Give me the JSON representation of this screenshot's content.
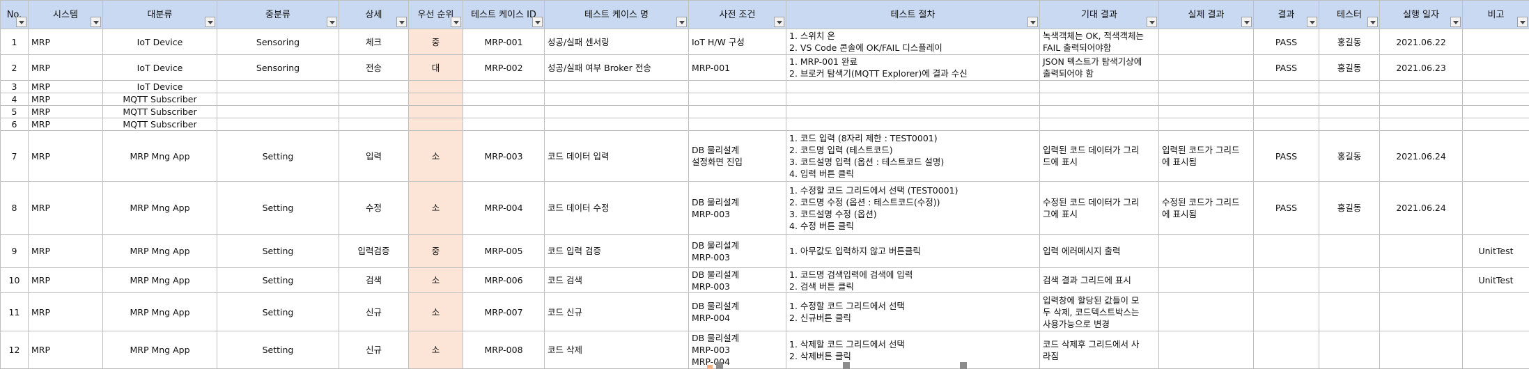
{
  "headers": [
    "No.",
    "시스템",
    "대분류",
    "중분류",
    "상세",
    "우선 순위",
    "테스트 케이스 ID",
    "테스트 케이스 명",
    "사전 조건",
    "테스트 절차",
    "기대 결과",
    "실제 결과",
    "결과",
    "테스터",
    "실행 일자",
    "비고"
  ],
  "rows": [
    {
      "no": "1",
      "sys": "MRP",
      "cat": "IoT Device",
      "sub": "Sensoring",
      "detail": "체크",
      "pri": "중",
      "id": "MRP-001",
      "name": "성공/실패 센서링",
      "pre": "IoT H/W 구성",
      "proc": "1. 스위치 온\n2. VS Code 콘솔에 OK/FAIL 디스플레이",
      "exp": "녹색객체는 OK, 적색객체는\nFAIL 출력되어야함",
      "act": "",
      "res": "PASS",
      "tester": "홍길동",
      "date": "2021.06.22",
      "note": ""
    },
    {
      "no": "2",
      "sys": "MRP",
      "cat": "IoT Device",
      "sub": "Sensoring",
      "detail": "전송",
      "pri": "대",
      "id": "MRP-002",
      "name": "성공/실패 여부 Broker 전송",
      "pre": "MRP-001",
      "proc": "1. MRP-001 완료\n2. 브로커 탐색기(MQTT Explorer)에 결과 수신",
      "exp": "JSON 텍스트가 탐색기상에\n출력되어야 함",
      "act": "",
      "res": "PASS",
      "tester": "홍길동",
      "date": "2021.06.23",
      "note": ""
    },
    {
      "no": "3",
      "sys": "MRP",
      "cat": "IoT Device",
      "sub": "",
      "detail": "",
      "pri": "",
      "id": "",
      "name": "",
      "pre": "",
      "proc": "",
      "exp": "",
      "act": "",
      "res": "",
      "tester": "",
      "date": "",
      "note": ""
    },
    {
      "no": "4",
      "sys": "MRP",
      "cat": "MQTT Subscriber",
      "sub": "",
      "detail": "",
      "pri": "",
      "id": "",
      "name": "",
      "pre": "",
      "proc": "",
      "exp": "",
      "act": "",
      "res": "",
      "tester": "",
      "date": "",
      "note": ""
    },
    {
      "no": "5",
      "sys": "MRP",
      "cat": "MQTT Subscriber",
      "sub": "",
      "detail": "",
      "pri": "",
      "id": "",
      "name": "",
      "pre": "",
      "proc": "",
      "exp": "",
      "act": "",
      "res": "",
      "tester": "",
      "date": "",
      "note": ""
    },
    {
      "no": "6",
      "sys": "MRP",
      "cat": "MQTT Subscriber",
      "sub": "",
      "detail": "",
      "pri": "",
      "id": "",
      "name": "",
      "pre": "",
      "proc": "",
      "exp": "",
      "act": "",
      "res": "",
      "tester": "",
      "date": "",
      "note": ""
    },
    {
      "no": "7",
      "sys": "MRP",
      "cat": "MRP Mng App",
      "sub": "Setting",
      "detail": "입력",
      "pri": "소",
      "id": "MRP-003",
      "name": "코드 데이터 입력",
      "pre": "DB 물리설계\n설정화면 진입",
      "proc": "1. 코드 입력 (8자리 제한 : TEST0001)\n2. 코드명 입력 (테스트코드)\n3. 코드설명 입력 (옵션 : 테스트코드 설명)\n4. 입력 버튼 클릭",
      "exp": "입력된 코드 데이터가 그리\n드에 표시",
      "act": "입력된 코드가 그리드\n에 표시됨",
      "res": "PASS",
      "tester": "홍길동",
      "date": "2021.06.24",
      "note": ""
    },
    {
      "no": "8",
      "sys": "MRP",
      "cat": "MRP Mng App",
      "sub": "Setting",
      "detail": "수정",
      "pri": "소",
      "id": "MRP-004",
      "name": "코드 데이터 수정",
      "pre": "DB 물리설계\nMRP-003",
      "proc": "1. 수정할 코드 그리드에서 선택 (TEST0001)\n2. 코드명 수정 (옵션 : 테스트코드(수정))\n3. 코드설명 수정 (옵션)\n4. 수정 버튼 클릭",
      "exp": "수정된 코드 데이터가 그리\n그에 표시",
      "act": "수정된 코드가 그리드\n에 표시됨",
      "res": "PASS",
      "tester": "홍길동",
      "date": "2021.06.24",
      "note": ""
    },
    {
      "no": "9",
      "sys": "MRP",
      "cat": "MRP Mng App",
      "sub": "Setting",
      "detail": "입력검증",
      "pri": "중",
      "id": "MRP-005",
      "name": "코드 입력 검증",
      "pre": "DB 물리설계\nMRP-003",
      "proc": "1. 아무값도 입력하지 않고 버튼클릭",
      "exp": "입력 에러메시지 출력",
      "act": "",
      "res": "",
      "tester": "",
      "date": "",
      "note": "UnitTest"
    },
    {
      "no": "10",
      "sys": "MRP",
      "cat": "MRP Mng App",
      "sub": "Setting",
      "detail": "검색",
      "pri": "소",
      "id": "MRP-006",
      "name": "코드 검색",
      "pre": "DB 물리설계\nMRP-003",
      "proc": "1. 코드명 검색입력에 검색에 입력\n2. 검색 버튼 클릭",
      "exp": "검색 결과 그리드에 표시",
      "act": "",
      "res": "",
      "tester": "",
      "date": "",
      "note": "UnitTest"
    },
    {
      "no": "11",
      "sys": "MRP",
      "cat": "MRP Mng App",
      "sub": "Setting",
      "detail": "신규",
      "pri": "소",
      "id": "MRP-007",
      "name": "코드 신규",
      "pre": "DB 물리설계\nMRP-004",
      "proc": "1. 수정할 코드 그리드에서 선택\n2. 신규버튼 클릭",
      "exp": "입력창에 할당된 값들이 모\n두 삭제, 코드텍스트박스는\n사용가능으로 변경",
      "act": "",
      "res": "",
      "tester": "",
      "date": "",
      "note": ""
    },
    {
      "no": "12",
      "sys": "MRP",
      "cat": "MRP Mng App",
      "sub": "Setting",
      "detail": "신규",
      "pri": "소",
      "id": "MRP-008",
      "name": "코드 삭제",
      "pre": "DB 물리설계\nMRP-003\nMRP-004",
      "proc": "1. 삭제할 코드 그리드에서 선택\n2. 삭제버튼 클릭",
      "exp": "코드 삭제후 그리드에서 사\n라짐",
      "act": "",
      "res": "",
      "tester": "",
      "date": "",
      "note": ""
    }
  ]
}
